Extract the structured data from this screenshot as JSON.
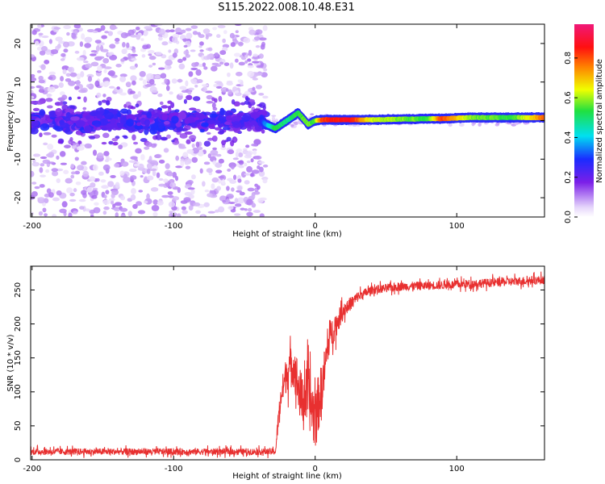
{
  "title": "S115.2022.008.10.48.E31",
  "chart_data": [
    {
      "type": "heatmap",
      "xlabel": "Height of straight line (km)",
      "ylabel": "Frequency (Hz)",
      "xlim": [
        -201,
        162
      ],
      "ylim": [
        -25,
        25
      ],
      "xticks": [
        -200,
        -100,
        0,
        100
      ],
      "yticks": [
        -20,
        -10,
        0,
        10,
        20
      ],
      "colorbar": {
        "label": "Normalized spectral amplitude",
        "range": [
          0,
          0.97
        ],
        "ticks": [
          0.0,
          0.2,
          0.4,
          0.6,
          0.8
        ],
        "colormap": "rainbow (white→purple→blue→cyan→green→yellow→red→magenta)"
      },
      "ridge": [
        {
          "x": -201,
          "freq": 1.0,
          "amp": 0.22
        },
        {
          "x": -40,
          "freq": 1.0,
          "amp": 0.22
        },
        {
          "x": -35,
          "freq": -1.0,
          "amp": 0.35
        },
        {
          "x": -28,
          "freq": -2.0,
          "amp": 0.55
        },
        {
          "x": -20,
          "freq": 0.0,
          "amp": 0.5
        },
        {
          "x": -12,
          "freq": 2.0,
          "amp": 0.55
        },
        {
          "x": -5,
          "freq": -1.0,
          "amp": 0.6
        },
        {
          "x": 0,
          "freq": 0.0,
          "amp": 0.55
        },
        {
          "x": 5,
          "freq": 0.2,
          "amp": 0.85
        },
        {
          "x": 25,
          "freq": 0.2,
          "amp": 0.9
        },
        {
          "x": 40,
          "freq": 0.2,
          "amp": 0.65
        },
        {
          "x": 80,
          "freq": 0.5,
          "amp": 0.55
        },
        {
          "x": 90,
          "freq": 0.5,
          "amp": 0.85
        },
        {
          "x": 110,
          "freq": 0.8,
          "amp": 0.6
        },
        {
          "x": 140,
          "freq": 0.8,
          "amp": 0.55
        },
        {
          "x": 162,
          "freq": 0.8,
          "amp": 0.8
        }
      ],
      "noise_region": {
        "x_from": -201,
        "x_to": -35,
        "freq_spread": 25
      }
    },
    {
      "type": "line",
      "xlabel": "Height of straight line (km)",
      "ylabel": "SNR (10 * v/v)",
      "xlim": [
        -201,
        162
      ],
      "ylim": [
        0,
        285
      ],
      "xticks": [
        -200,
        -100,
        0,
        100
      ],
      "yticks": [
        0,
        50,
        100,
        150,
        200,
        250
      ],
      "color": "#e83030",
      "series": [
        {
          "x": [
            -201,
            -100,
            -28,
            -26,
            -24,
            -20,
            -15,
            -10,
            -5,
            0,
            5,
            10,
            20,
            30,
            40,
            60,
            100,
            162
          ],
          "values": [
            12,
            12,
            12,
            60,
            95,
            130,
            140,
            90,
            95,
            60,
            110,
            180,
            220,
            240,
            250,
            255,
            258,
            265
          ],
          "noise_amplitude": [
            6,
            6,
            6,
            20,
            25,
            35,
            40,
            50,
            55,
            60,
            45,
            30,
            15,
            10,
            8,
            8,
            8,
            8
          ]
        }
      ]
    }
  ]
}
